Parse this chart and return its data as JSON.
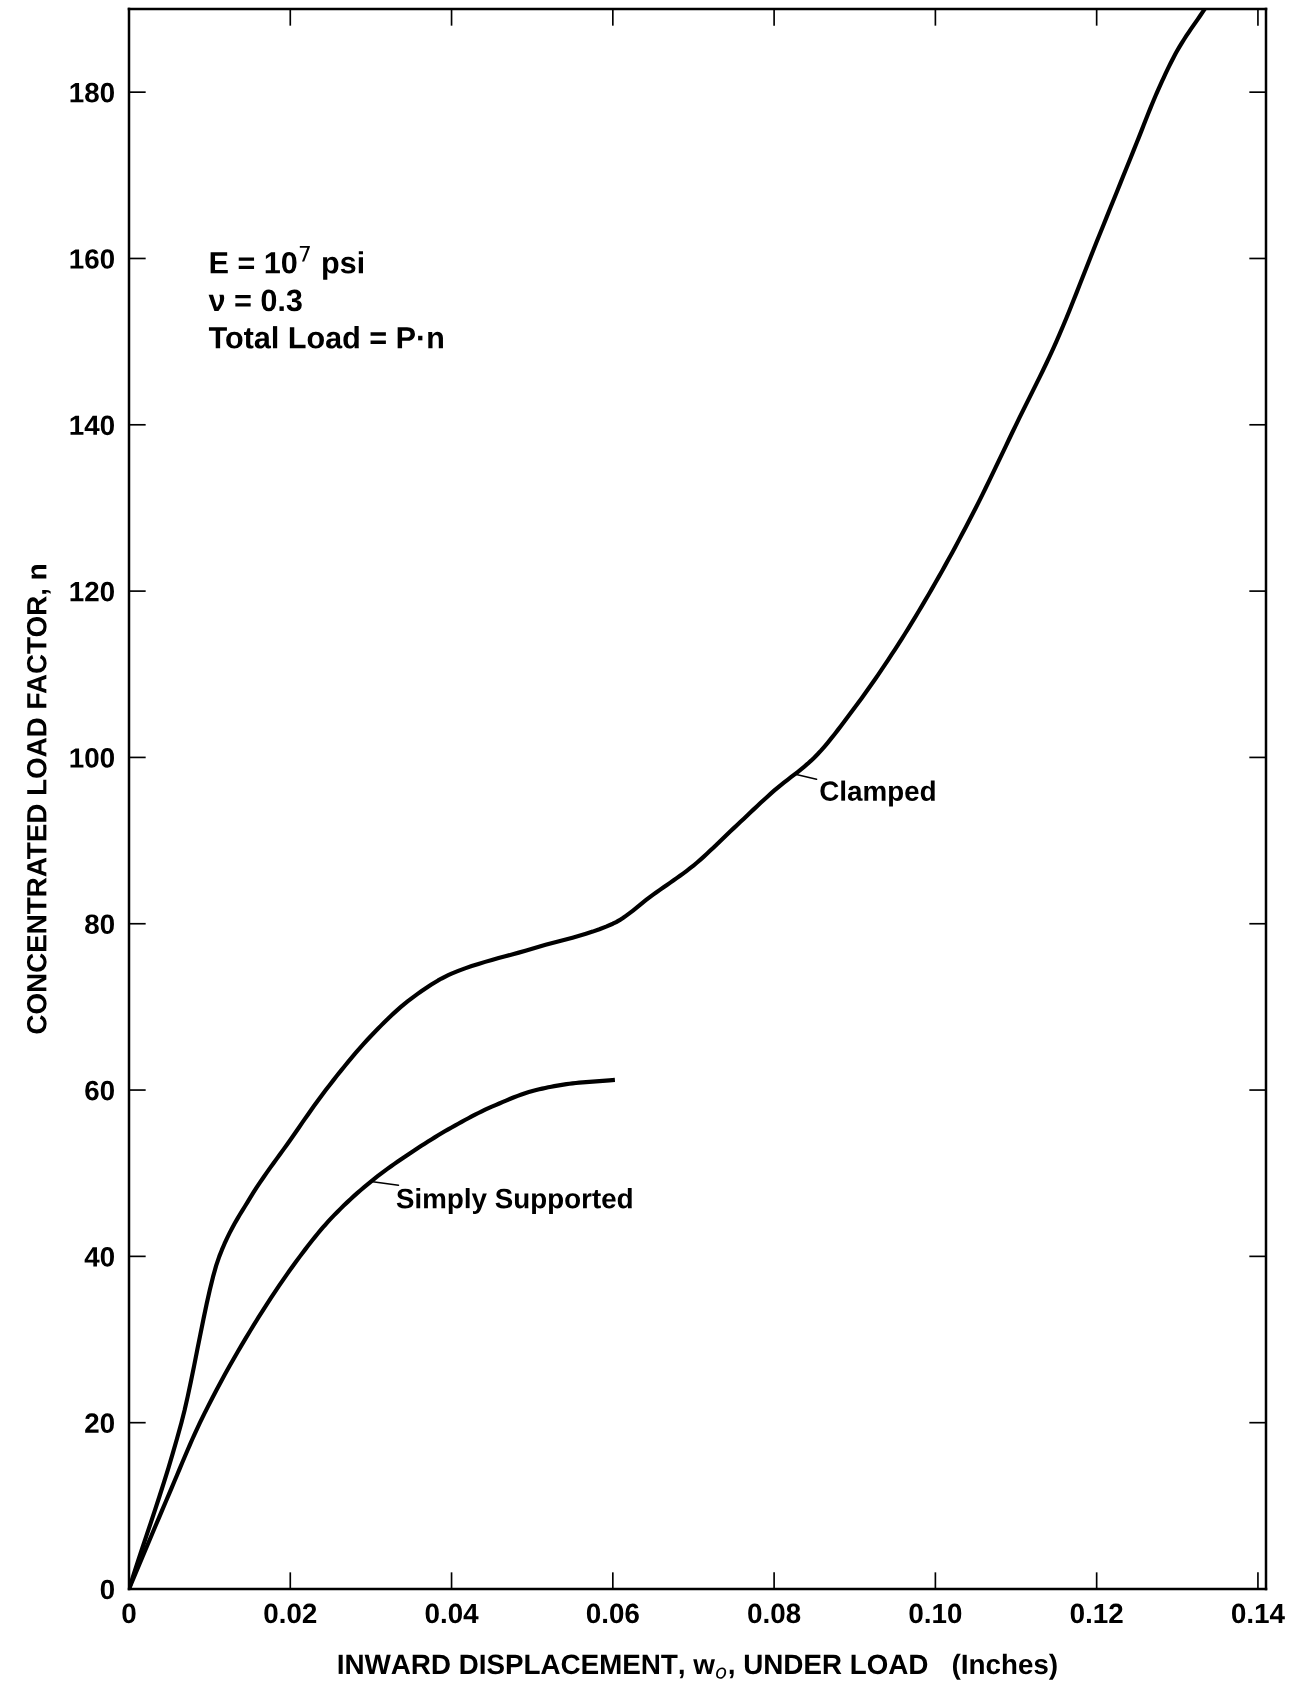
{
  "chart_data": {
    "type": "line",
    "xlabel": "INWARD DISPLACEMENT, w$_{o}$, UNDER LOAD   (Inches)",
    "ylabel": "CONCENTRATED LOAD FACTOR, n",
    "xlim": [
      0,
      0.141
    ],
    "ylim": [
      0,
      190
    ],
    "xticks": [
      0,
      0.02,
      0.04,
      0.06,
      0.08,
      {
        "value": 0.1,
        "label": "0.10"
      },
      0.12,
      0.14
    ],
    "yticks": [
      0,
      20,
      40,
      60,
      80,
      100,
      120,
      140,
      160,
      180
    ],
    "grid": false,
    "legend": false,
    "marker": "none",
    "line_style": "solid",
    "series": [
      {
        "color": "#000000",
        "x": [
          0,
          0.0065,
          0.0112,
          0.015,
          0.02,
          0.0244,
          0.03,
          0.035,
          0.04,
          0.05,
          0.06,
          0.065,
          0.07,
          0.075,
          0.08,
          0.085,
          0.09,
          0.095,
          0.1,
          0.105,
          0.11,
          0.115,
          0.12,
          0.125,
          0.1275,
          0.13,
          0.1334
        ],
        "values": [
          0,
          20,
          40,
          47,
          54,
          60,
          66.5,
          71,
          74,
          77,
          80,
          83.5,
          87,
          91.5,
          96,
          100,
          106,
          113,
          121,
          130,
          140,
          150,
          162,
          174,
          180,
          185,
          190
        ]
      },
      {
        "color": "#000000",
        "x": [
          0,
          0.005,
          0.0088,
          0.015,
          0.0212,
          0.025,
          0.03,
          0.035,
          0.04,
          0.045,
          0.0505,
          0.055,
          0.06
        ],
        "values": [
          0,
          11.5,
          20,
          31,
          40,
          44.5,
          49,
          52.5,
          55.5,
          58,
          60,
          60.8,
          61.2
        ]
      }
    ],
    "annotations": [
      "E = 10$^{7}$ psi\nν = 0.3\nTotal Load = P·n",
      {
        "text": "Clamped",
        "x": 0.0825,
        "y": 98
      },
      {
        "text": "Simply Supported",
        "x": 0.03,
        "y": 49
      }
    ]
  }
}
